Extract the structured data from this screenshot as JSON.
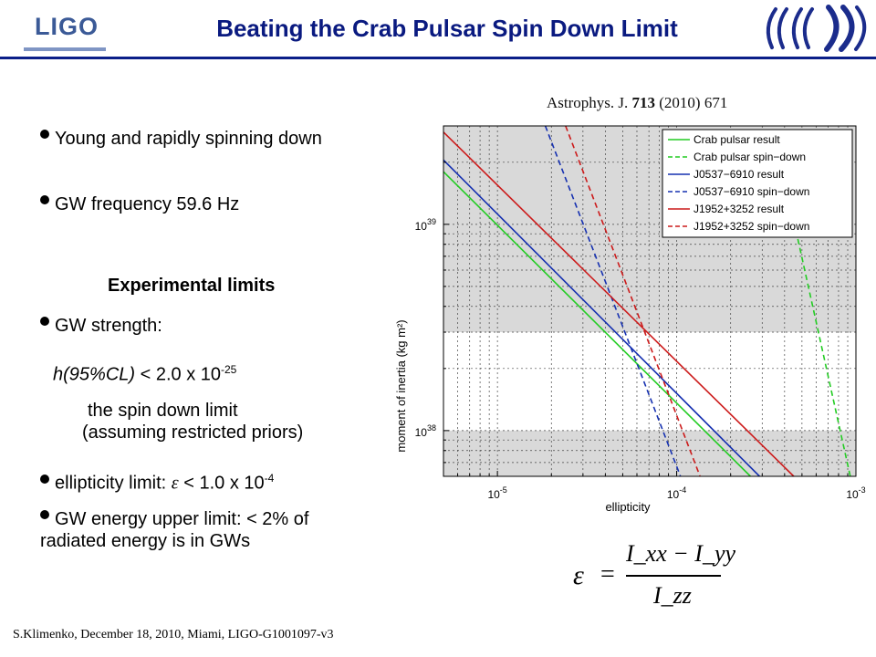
{
  "header": {
    "logo_text": "LIGO",
    "title": "Beating the Crab Pulsar Spin Down Limit"
  },
  "citation": {
    "journal": "Astrophys. J.",
    "volume": "713",
    "pages": "(2010) 671"
  },
  "bullets": {
    "b1": "Young and rapidly spinning down",
    "b2": "GW frequency 59.6 Hz",
    "section_heading": "Experimental limits",
    "b3": "GW strength:",
    "h_prefix": "h(95%CL)",
    "h_value": " < 2.0 x 10",
    "h_exp": "-25",
    "spin_line1": "the spin down limit",
    "spin_line2": "(assuming restricted priors)",
    "b4_prefix": "ellipticity limit: ",
    "b4_symbol": "ε",
    "b4_value": " < 1.0 x 10",
    "b4_exp": "-4",
    "b5": "GW energy upper limit: < 2% of radiated energy is in GWs"
  },
  "formula": {
    "lhs": "ε",
    "equals": "=",
    "numerator": "I_xx − I_yy",
    "denominator": "I_zz"
  },
  "footer": "S.Klimenko, December 18, 2010, Miami, LIGO-G1001097-v3",
  "chart_data": {
    "type": "line",
    "xlabel": "ellipticity",
    "ylabel": "moment of inertia (kg m²)",
    "x_scale": "log",
    "y_scale": "log",
    "xlim": [
      5e-06,
      0.001
    ],
    "ylim": [
      6e+37,
      3e+39
    ],
    "x_tick_labels": [
      "10^-5",
      "10^-4",
      "10^-3"
    ],
    "y_tick_labels": [
      "10^38",
      "10^39"
    ],
    "grid": true,
    "legend_position": "top-right",
    "shaded_bands": [
      {
        "y_from": 3e+38,
        "y_to": 3e+39,
        "color": "#d9d9d9"
      },
      {
        "y_from": 6e+37,
        "y_to": 1e+38,
        "color": "#d9d9d9"
      }
    ],
    "series": [
      {
        "name": "Crab pulsar result",
        "color": "#22cc22",
        "dash": "solid",
        "points": [
          [
            5e-06,
            1.8e+39
          ],
          [
            0.000258,
            6e+37
          ]
        ]
      },
      {
        "name": "Crab pulsar spin−down",
        "color": "#22cc22",
        "dash": "dashed",
        "points": [
          [
            0.00035,
            2.8e+39
          ],
          [
            0.00093,
            6e+37
          ]
        ]
      },
      {
        "name": "J0537−6910 result",
        "color": "#1530b0",
        "dash": "solid",
        "points": [
          [
            5e-06,
            2.05e+39
          ],
          [
            0.00029,
            6e+37
          ]
        ]
      },
      {
        "name": "J0537−6910 spin−down",
        "color": "#1530b0",
        "dash": "dashed",
        "points": [
          [
            1.85e-05,
            3e+39
          ],
          [
            0.000105,
            6e+37
          ]
        ]
      },
      {
        "name": "J1952+3252 result",
        "color": "#cc1a1a",
        "dash": "solid",
        "points": [
          [
            5e-06,
            2.8e+39
          ],
          [
            0.00045,
            6e+37
          ]
        ]
      },
      {
        "name": "J1952+3252 spin−down",
        "color": "#cc1a1a",
        "dash": "dashed",
        "points": [
          [
            2.4e-05,
            3e+39
          ],
          [
            0.000135,
            6e+37
          ]
        ]
      }
    ]
  }
}
